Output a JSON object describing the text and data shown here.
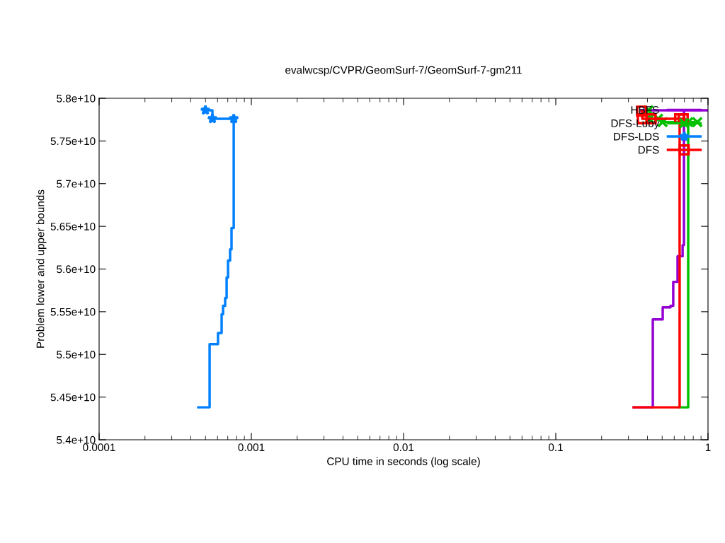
{
  "chart_data": {
    "type": "step",
    "title": "evalwcsp/CVPR/GeomSurf-7/GeomSurf-7-gm211",
    "xlabel": "CPU time in seconds (log scale)",
    "ylabel": "Problem lower and upper bounds",
    "log": "x",
    "grid": false,
    "legend": "top right",
    "xlim": [
      0.0001,
      1
    ],
    "xticks": [
      {
        "value": 0.0001,
        "label": "0.0001"
      },
      {
        "value": 0.001,
        "label": "0.001"
      },
      {
        "value": 0.01,
        "label": "0.01"
      },
      {
        "value": 0.1,
        "label": "0.1"
      },
      {
        "value": 1,
        "label": "1"
      }
    ],
    "ylim": [
      54000000000,
      58000000000
    ],
    "yticks": [
      {
        "value": 54000000000,
        "label": "5.4e+10"
      },
      {
        "value": 54500000000,
        "label": "5.45e+10"
      },
      {
        "value": 55000000000,
        "label": "5.5e+10"
      },
      {
        "value": 55500000000,
        "label": "5.55e+10"
      },
      {
        "value": 56000000000,
        "label": "5.6e+10"
      },
      {
        "value": 56500000000,
        "label": "5.65e+10"
      },
      {
        "value": 57000000000,
        "label": "5.7e+10"
      },
      {
        "value": 57500000000,
        "label": "5.75e+10"
      },
      {
        "value": 58000000000,
        "label": "5.8e+10"
      }
    ],
    "series": [
      {
        "name": "HBFS",
        "color": "#9400d3",
        "marker": "none",
        "x": [
          0.325,
          0.434,
          0.504,
          0.567,
          0.591,
          0.631,
          0.681,
          0.695
        ],
        "values": [
          54380000000,
          55410000000,
          55550000000,
          55570000000,
          55850000000,
          56150000000,
          56280000000,
          57860000000
        ]
      },
      {
        "color": "#9400d3",
        "marker": "none",
        "x": [
          0.361,
          1.0
        ],
        "values": [
          57860000000,
          57860000000
        ]
      },
      {
        "name": "DFS-Luby",
        "color": "#00c000",
        "marker": "cross",
        "x": [
          0.406,
          0.412,
          0.47,
          0.503,
          0.741,
          0.85
        ],
        "values": [
          57860000000,
          57760000000,
          57760000000,
          57720000000,
          57720000000,
          57720000000
        ]
      },
      {
        "color": "#00c000",
        "marker": "none",
        "x": [
          0.651,
          0.741
        ],
        "values": [
          54380000000,
          57720000000
        ]
      },
      {
        "name": "DFS-LDS",
        "color": "#0080ff",
        "marker": "star",
        "x": [
          0.000499,
          0.000555,
          0.000766
        ],
        "values": [
          57860000000,
          57760000000,
          57760000000
        ]
      },
      {
        "color": "#0080ff",
        "marker": "none",
        "x": [
          0.000448,
          0.000532,
          0.000604,
          0.000638,
          0.000652,
          0.000673,
          0.000688,
          0.000703,
          0.000725,
          0.000741,
          0.000766
        ],
        "values": [
          54380000000,
          55120000000,
          55250000000,
          55470000000,
          55570000000,
          55660000000,
          55900000000,
          56100000000,
          56230000000,
          56480000000,
          57760000000
        ]
      },
      {
        "name": "DFS",
        "color": "#ff0000",
        "marker": "square",
        "x": [
          0.366,
          0.37,
          0.423,
          0.651,
          0.687
        ],
        "values": [
          57850000000,
          57760000000,
          57760000000,
          57760000000,
          57760000000
        ]
      },
      {
        "color": "#ff0000",
        "marker": "none",
        "x": [
          0.325,
          0.651
        ],
        "values": [
          54380000000,
          57760000000
        ]
      }
    ]
  }
}
